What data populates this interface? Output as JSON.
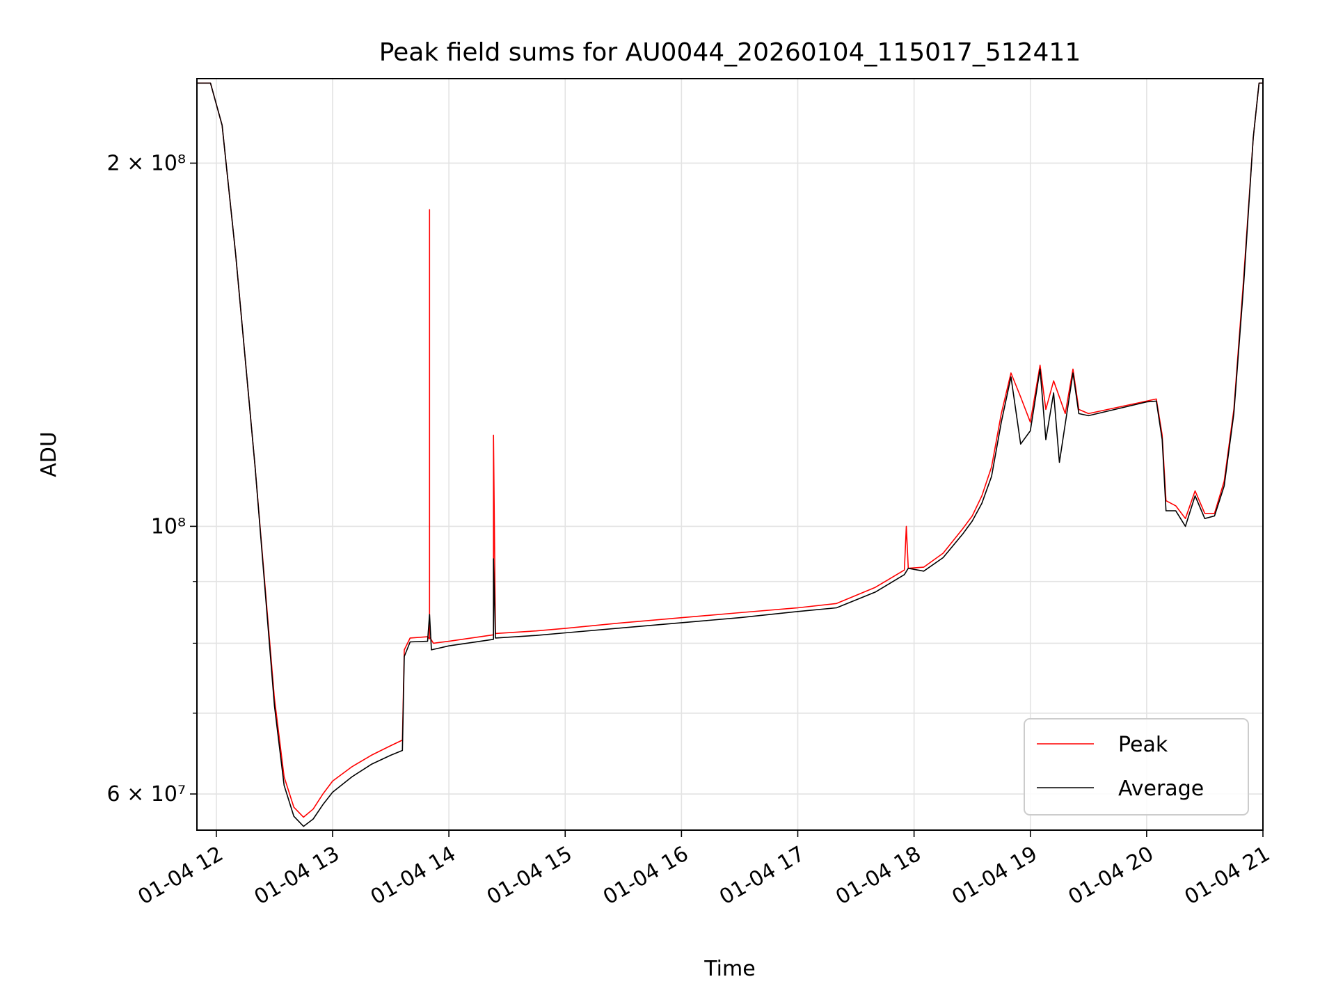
{
  "chart_data": {
    "type": "line",
    "title": "Peak field sums for AU0044_20260104_115017_512411",
    "xlabel": "Time",
    "ylabel": "ADU",
    "yscale": "log",
    "grid": true,
    "legend_position": "lower-right",
    "xlim": [
      "01-04 11:50",
      "01-04 21:00"
    ],
    "ylim": [
      56000000,
      235000000
    ],
    "x_ticks": [
      {
        "x": "01-04 12:00",
        "label": "01-04 12"
      },
      {
        "x": "01-04 13:00",
        "label": "01-04 13"
      },
      {
        "x": "01-04 14:00",
        "label": "01-04 14"
      },
      {
        "x": "01-04 15:00",
        "label": "01-04 15"
      },
      {
        "x": "01-04 16:00",
        "label": "01-04 16"
      },
      {
        "x": "01-04 17:00",
        "label": "01-04 17"
      },
      {
        "x": "01-04 18:00",
        "label": "01-04 18"
      },
      {
        "x": "01-04 19:00",
        "label": "01-04 19"
      },
      {
        "x": "01-04 20:00",
        "label": "01-04 20"
      },
      {
        "x": "01-04 21:00",
        "label": "01-04 21"
      }
    ],
    "y_ticks": [
      {
        "y": 60000000,
        "label": "6 × 10⁷"
      },
      {
        "y": 100000000,
        "label": "10⁸"
      },
      {
        "y": 200000000,
        "label": "2 × 10⁸"
      }
    ],
    "y_minor_ticks": [
      70000000,
      80000000,
      90000000
    ],
    "series": [
      {
        "name": "Peak",
        "color": "#ff0000",
        "points": [
          [
            "01-04 11:50",
            233000000
          ],
          [
            "01-04 11:57",
            233000000
          ],
          [
            "01-04 12:03",
            215000000
          ],
          [
            "01-04 12:10",
            168000000
          ],
          [
            "01-04 12:20",
            112000000
          ],
          [
            "01-04 12:30",
            72000000
          ],
          [
            "01-04 12:35",
            62000000
          ],
          [
            "01-04 12:40",
            58500000
          ],
          [
            "01-04 12:45",
            57400000
          ],
          [
            "01-04 12:50",
            58300000
          ],
          [
            "01-04 12:55",
            60000000
          ],
          [
            "01-04 13:00",
            61500000
          ],
          [
            "01-04 13:10",
            63200000
          ],
          [
            "01-04 13:20",
            64600000
          ],
          [
            "01-04 13:30",
            65800000
          ],
          [
            "01-04 13:36",
            66500000
          ],
          [
            "01-04 13:37",
            79000000
          ],
          [
            "01-04 13:40",
            80800000
          ],
          [
            "01-04 13:49",
            81000000
          ],
          [
            "01-04 13:50",
            80700000
          ],
          [
            "01-04 13:50",
            183000000
          ],
          [
            "01-04 13:50",
            81000000
          ],
          [
            "01-04 13:52",
            80000000
          ],
          [
            "01-04 14:00",
            80300000
          ],
          [
            "01-04 14:23",
            81300000
          ],
          [
            "01-04 14:23",
            119000000
          ],
          [
            "01-04 14:24",
            81500000
          ],
          [
            "01-04 14:45",
            81900000
          ],
          [
            "01-04 15:00",
            82300000
          ],
          [
            "01-04 15:30",
            83200000
          ],
          [
            "01-04 16:00",
            84000000
          ],
          [
            "01-04 16:30",
            84800000
          ],
          [
            "01-04 17:00",
            85600000
          ],
          [
            "01-04 17:20",
            86300000
          ],
          [
            "01-04 17:40",
            89000000
          ],
          [
            "01-04 17:55",
            92000000
          ],
          [
            "01-04 17:56",
            100000000
          ],
          [
            "01-04 17:57",
            92300000
          ],
          [
            "01-04 18:05",
            92500000
          ],
          [
            "01-04 18:15",
            95000000
          ],
          [
            "01-04 18:25",
            99500000
          ],
          [
            "01-04 18:30",
            102000000
          ],
          [
            "01-04 18:35",
            106000000
          ],
          [
            "01-04 18:40",
            112000000
          ],
          [
            "01-04 18:45",
            124000000
          ],
          [
            "01-04 18:50",
            134000000
          ],
          [
            "01-04 18:55",
            128000000
          ],
          [
            "01-04 19:00",
            122000000
          ],
          [
            "01-04 19:05",
            136000000
          ],
          [
            "01-04 19:08",
            125000000
          ],
          [
            "01-04 19:12",
            132000000
          ],
          [
            "01-04 19:18",
            124000000
          ],
          [
            "01-04 19:22",
            135000000
          ],
          [
            "01-04 19:25",
            125000000
          ],
          [
            "01-04 19:30",
            124000000
          ],
          [
            "01-04 20:00",
            127000000
          ],
          [
            "01-04 20:05",
            127500000
          ],
          [
            "01-04 20:08",
            119000000
          ],
          [
            "01-04 20:10",
            105000000
          ],
          [
            "01-04 20:15",
            104000000
          ],
          [
            "01-04 20:20",
            101500000
          ],
          [
            "01-04 20:25",
            107000000
          ],
          [
            "01-04 20:30",
            102500000
          ],
          [
            "01-04 20:35",
            102500000
          ],
          [
            "01-04 20:40",
            109000000
          ],
          [
            "01-04 20:45",
            125000000
          ],
          [
            "01-04 20:50",
            160000000
          ],
          [
            "01-04 20:55",
            210000000
          ],
          [
            "01-04 20:58",
            233000000
          ],
          [
            "01-04 21:00",
            233000000
          ]
        ]
      },
      {
        "name": "Average",
        "color": "#000000",
        "points": [
          [
            "01-04 11:50",
            233000000
          ],
          [
            "01-04 11:57",
            233000000
          ],
          [
            "01-04 12:03",
            215000000
          ],
          [
            "01-04 12:10",
            168000000
          ],
          [
            "01-04 12:20",
            112000000
          ],
          [
            "01-04 12:30",
            71000000
          ],
          [
            "01-04 12:35",
            61000000
          ],
          [
            "01-04 12:40",
            57500000
          ],
          [
            "01-04 12:45",
            56400000
          ],
          [
            "01-04 12:50",
            57200000
          ],
          [
            "01-04 12:55",
            58800000
          ],
          [
            "01-04 13:00",
            60200000
          ],
          [
            "01-04 13:10",
            62000000
          ],
          [
            "01-04 13:20",
            63500000
          ],
          [
            "01-04 13:30",
            64600000
          ],
          [
            "01-04 13:36",
            65200000
          ],
          [
            "01-04 13:37",
            78000000
          ],
          [
            "01-04 13:40",
            80200000
          ],
          [
            "01-04 13:49",
            80300000
          ],
          [
            "01-04 13:50",
            84500000
          ],
          [
            "01-04 13:51",
            79000000
          ],
          [
            "01-04 14:00",
            79600000
          ],
          [
            "01-04 14:23",
            80600000
          ],
          [
            "01-04 14:23",
            94000000
          ],
          [
            "01-04 14:24",
            80800000
          ],
          [
            "01-04 14:45",
            81200000
          ],
          [
            "01-04 15:00",
            81600000
          ],
          [
            "01-04 15:30",
            82400000
          ],
          [
            "01-04 16:00",
            83200000
          ],
          [
            "01-04 16:30",
            84000000
          ],
          [
            "01-04 17:00",
            85000000
          ],
          [
            "01-04 17:20",
            85600000
          ],
          [
            "01-04 17:40",
            88200000
          ],
          [
            "01-04 17:55",
            91200000
          ],
          [
            "01-04 17:57",
            92300000
          ],
          [
            "01-04 18:05",
            91800000
          ],
          [
            "01-04 18:15",
            94200000
          ],
          [
            "01-04 18:25",
            98500000
          ],
          [
            "01-04 18:30",
            101000000
          ],
          [
            "01-04 18:35",
            104500000
          ],
          [
            "01-04 18:40",
            110000000
          ],
          [
            "01-04 18:45",
            122000000
          ],
          [
            "01-04 18:50",
            133000000
          ],
          [
            "01-04 18:55",
            117000000
          ],
          [
            "01-04 19:00",
            120000000
          ],
          [
            "01-04 19:05",
            135000000
          ],
          [
            "01-04 19:08",
            118000000
          ],
          [
            "01-04 19:12",
            129000000
          ],
          [
            "01-04 19:15",
            113000000
          ],
          [
            "01-04 19:22",
            134000000
          ],
          [
            "01-04 19:25",
            124000000
          ],
          [
            "01-04 19:30",
            123500000
          ],
          [
            "01-04 20:00",
            126800000
          ],
          [
            "01-04 20:05",
            127000000
          ],
          [
            "01-04 20:08",
            118000000
          ],
          [
            "01-04 20:10",
            103000000
          ],
          [
            "01-04 20:15",
            103000000
          ],
          [
            "01-04 20:20",
            100000000
          ],
          [
            "01-04 20:25",
            106000000
          ],
          [
            "01-04 20:30",
            101500000
          ],
          [
            "01-04 20:35",
            102000000
          ],
          [
            "01-04 20:40",
            108000000
          ],
          [
            "01-04 20:45",
            124000000
          ],
          [
            "01-04 20:50",
            158000000
          ],
          [
            "01-04 20:55",
            210000000
          ],
          [
            "01-04 20:58",
            233000000
          ],
          [
            "01-04 21:00",
            233000000
          ]
        ]
      }
    ]
  }
}
